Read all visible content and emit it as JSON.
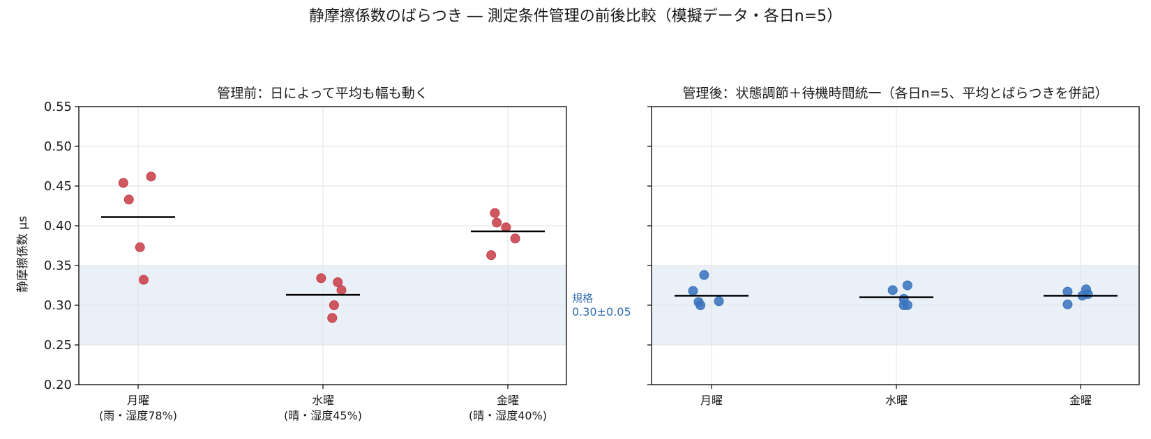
{
  "title": "静摩擦係数のばらつき ― 測定条件管理の前後比較（模擬データ・各日n=5）",
  "y_axis": {
    "label": "静摩擦係数 μs",
    "min": 0.2,
    "max": 0.55,
    "ticks": [
      "0.20",
      "0.25",
      "0.30",
      "0.35",
      "0.40",
      "0.45",
      "0.50",
      "0.55"
    ]
  },
  "spec": {
    "label_line1": "規格",
    "label_line2": "0.30±0.05",
    "lower": 0.25,
    "upper": 0.35,
    "band_color": "#eaf0f8",
    "label_color": "#2f6db3"
  },
  "chart_data": [
    {
      "type": "scatter",
      "title": "管理前：日によって平均も幅も動く",
      "ylabel": "静摩擦係数 μs",
      "ylim": [
        0.2,
        0.55
      ],
      "grid": true,
      "color": "#c8404a",
      "categories": [
        "月曜\n(雨・湿度78%)",
        "水曜\n(晴・湿度45%)",
        "金曜\n(晴・湿度40%)"
      ],
      "category_lines": [
        [
          "月曜",
          "(雨・湿度78%)"
        ],
        [
          "水曜",
          "(晴・湿度45%)"
        ],
        [
          "金曜",
          "(晴・湿度40%)"
        ]
      ],
      "groups": [
        {
          "points": [
            {
              "dx": -0.08,
              "y": 0.454
            },
            {
              "dx": -0.05,
              "y": 0.433
            },
            {
              "dx": 0.07,
              "y": 0.462
            },
            {
              "dx": 0.01,
              "y": 0.373
            },
            {
              "dx": 0.03,
              "y": 0.332
            }
          ],
          "mean": 0.411
        },
        {
          "points": [
            {
              "dx": -0.01,
              "y": 0.334
            },
            {
              "dx": 0.08,
              "y": 0.329
            },
            {
              "dx": 0.1,
              "y": 0.319
            },
            {
              "dx": 0.06,
              "y": 0.3
            },
            {
              "dx": 0.05,
              "y": 0.284
            }
          ],
          "mean": 0.313
        },
        {
          "points": [
            {
              "dx": -0.07,
              "y": 0.416
            },
            {
              "dx": -0.06,
              "y": 0.404
            },
            {
              "dx": -0.01,
              "y": 0.398
            },
            {
              "dx": 0.04,
              "y": 0.384
            },
            {
              "dx": -0.09,
              "y": 0.363
            }
          ],
          "mean": 0.393
        }
      ]
    },
    {
      "type": "scatter",
      "title": "管理後：状態調節＋待機時間統一（各日n=5、平均とばらつきを併記）",
      "ylim": [
        0.2,
        0.55
      ],
      "grid": true,
      "color": "#3a74bd",
      "categories": [
        "月曜",
        "水曜",
        "金曜"
      ],
      "category_lines": [
        [
          "月曜"
        ],
        [
          "水曜"
        ],
        [
          "金曜"
        ]
      ],
      "groups": [
        {
          "points": [
            {
              "dx": -0.1,
              "y": 0.318
            },
            {
              "dx": -0.04,
              "y": 0.338
            },
            {
              "dx": -0.07,
              "y": 0.304
            },
            {
              "dx": -0.06,
              "y": 0.3
            },
            {
              "dx": 0.04,
              "y": 0.305
            }
          ],
          "mean": 0.312
        },
        {
          "points": [
            {
              "dx": -0.02,
              "y": 0.319
            },
            {
              "dx": 0.06,
              "y": 0.325
            },
            {
              "dx": 0.04,
              "y": 0.308
            },
            {
              "dx": 0.04,
              "y": 0.3
            },
            {
              "dx": 0.06,
              "y": 0.3
            }
          ],
          "mean": 0.31
        },
        {
          "points": [
            {
              "dx": -0.07,
              "y": 0.317
            },
            {
              "dx": 0.03,
              "y": 0.32
            },
            {
              "dx": 0.04,
              "y": 0.314
            },
            {
              "dx": -0.07,
              "y": 0.301
            },
            {
              "dx": 0.01,
              "y": 0.312
            }
          ],
          "mean": 0.312
        }
      ]
    }
  ]
}
